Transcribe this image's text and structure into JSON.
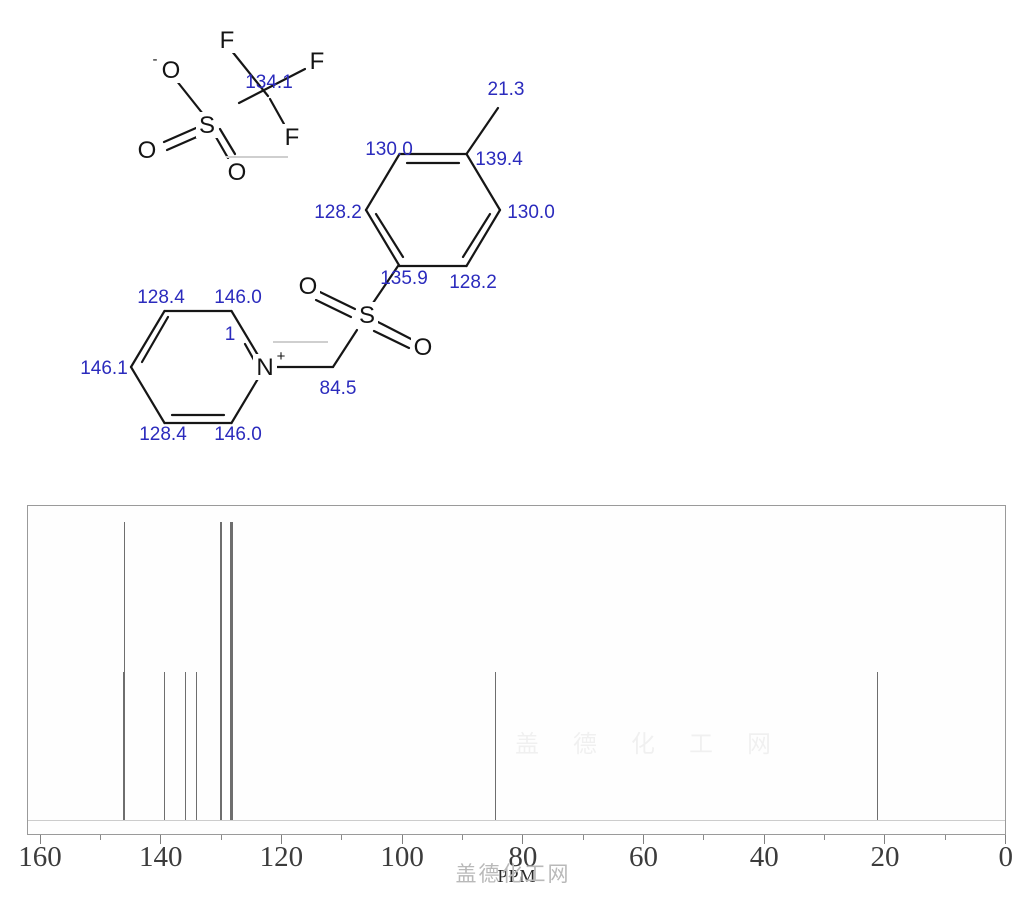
{
  "page": {
    "watermark": "盖德化工网"
  },
  "molecule": {
    "atoms": {
      "f": "F",
      "o": "O",
      "s": "S",
      "n": "N",
      "plus": "+",
      "minus": "-"
    },
    "shifts": {
      "triflate_c": "134.1",
      "tolyl_ch3": "21.3",
      "tolyl_c_ortho_left": "130.0",
      "tolyl_c_ipso_methyl": "139.4",
      "tolyl_c_meta_left": "128.2",
      "tolyl_c_ortho_right": "130.0",
      "tolyl_c_ipso_sulfonyl": "135.9",
      "tolyl_c_meta_bottom": "128.2",
      "ch2": "84.5",
      "pyridinium_c_beta_top": "128.4",
      "pyridinium_c_alpha_top": "146.0",
      "pyridinium_c_gamma": "146.1",
      "pyridinium_c_beta_bottom": "128.4",
      "pyridinium_c_alpha_bottom": "146.0",
      "covered_label_fragment": "1"
    }
  },
  "chart_data": {
    "type": "line",
    "subtype": "nmr-stick-spectrum",
    "xlabel": "PPM",
    "x_range": [
      160,
      0
    ],
    "x_ticks_major": [
      160,
      140,
      120,
      100,
      80,
      60,
      40,
      20,
      0
    ],
    "x_ticks_minor": [
      150,
      130,
      110,
      90,
      70,
      50,
      30,
      10
    ],
    "grid": false,
    "peaks": [
      {
        "ppm": 146.1,
        "intensity": 1
      },
      {
        "ppm": 146.0,
        "intensity": 2
      },
      {
        "ppm": 139.4,
        "intensity": 1
      },
      {
        "ppm": 135.9,
        "intensity": 1
      },
      {
        "ppm": 134.1,
        "intensity": 1
      },
      {
        "ppm": 130.0,
        "intensity": 2
      },
      {
        "ppm": 128.4,
        "intensity": 2
      },
      {
        "ppm": 128.2,
        "intensity": 2
      },
      {
        "ppm": 84.5,
        "intensity": 1
      },
      {
        "ppm": 21.3,
        "intensity": 1
      }
    ]
  }
}
